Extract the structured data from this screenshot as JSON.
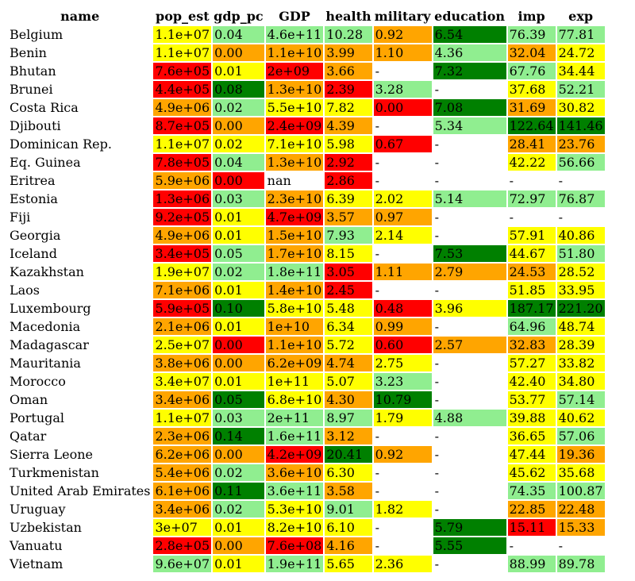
{
  "colors": {
    "r": "#ff0000",
    "o": "#ffa500",
    "y": "#ffff00",
    "lg": "#90ee90",
    "g": "#008000"
  },
  "chart_data": {
    "type": "table",
    "columns": [
      "name",
      "pop_est",
      "gdp_pc",
      "GDP",
      "health",
      "military",
      "education",
      "imp",
      "exp"
    ],
    "rows": [
      {
        "name": "Belgium",
        "cells": [
          [
            "1.1e+07",
            "y"
          ],
          [
            "0.04",
            "lg"
          ],
          [
            "4.6e+11",
            "lg"
          ],
          [
            "10.28",
            "lg"
          ],
          [
            "0.92",
            "o"
          ],
          [
            "6.54",
            "g"
          ],
          [
            "76.39",
            "lg"
          ],
          [
            "77.81",
            "lg"
          ]
        ]
      },
      {
        "name": "Benin",
        "cells": [
          [
            "1.1e+07",
            "y"
          ],
          [
            "0.00",
            "o"
          ],
          [
            "1.1e+10",
            "o"
          ],
          [
            "3.99",
            "o"
          ],
          [
            "1.10",
            "o"
          ],
          [
            "4.36",
            "lg"
          ],
          [
            "32.04",
            "o"
          ],
          [
            "24.72",
            "y"
          ]
        ]
      },
      {
        "name": "Bhutan",
        "cells": [
          [
            "7.6e+05",
            "r"
          ],
          [
            "0.01",
            "y"
          ],
          [
            "2e+09",
            "r"
          ],
          [
            "3.66",
            "o"
          ],
          [
            "-",
            ""
          ],
          [
            "7.32",
            "g"
          ],
          [
            "67.76",
            "lg"
          ],
          [
            "34.44",
            "y"
          ]
        ]
      },
      {
        "name": "Brunei",
        "cells": [
          [
            "4.4e+05",
            "r"
          ],
          [
            "0.08",
            "g"
          ],
          [
            "1.3e+10",
            "o"
          ],
          [
            "2.39",
            "r"
          ],
          [
            "3.28",
            "lg"
          ],
          [
            "-",
            ""
          ],
          [
            "37.68",
            "y"
          ],
          [
            "52.21",
            "lg"
          ]
        ]
      },
      {
        "name": "Costa Rica",
        "cells": [
          [
            "4.9e+06",
            "o"
          ],
          [
            "0.02",
            "lg"
          ],
          [
            "5.5e+10",
            "y"
          ],
          [
            "7.82",
            "y"
          ],
          [
            "0.00",
            "r"
          ],
          [
            "7.08",
            "g"
          ],
          [
            "31.69",
            "o"
          ],
          [
            "30.82",
            "y"
          ]
        ]
      },
      {
        "name": "Djibouti",
        "cells": [
          [
            "8.7e+05",
            "r"
          ],
          [
            "0.00",
            "o"
          ],
          [
            "2.4e+09",
            "r"
          ],
          [
            "4.39",
            "o"
          ],
          [
            "-",
            ""
          ],
          [
            "5.34",
            "lg"
          ],
          [
            "122.64",
            "g"
          ],
          [
            "141.46",
            "g"
          ]
        ]
      },
      {
        "name": "Dominican Rep.",
        "cells": [
          [
            "1.1e+07",
            "y"
          ],
          [
            "0.02",
            "y"
          ],
          [
            "7.1e+10",
            "y"
          ],
          [
            "5.98",
            "y"
          ],
          [
            "0.67",
            "r"
          ],
          [
            "-",
            ""
          ],
          [
            "28.41",
            "o"
          ],
          [
            "23.76",
            "o"
          ]
        ]
      },
      {
        "name": "Eq. Guinea",
        "cells": [
          [
            "7.8e+05",
            "r"
          ],
          [
            "0.04",
            "lg"
          ],
          [
            "1.3e+10",
            "o"
          ],
          [
            "2.92",
            "r"
          ],
          [
            "-",
            ""
          ],
          [
            "-",
            ""
          ],
          [
            "42.22",
            "y"
          ],
          [
            "56.66",
            "lg"
          ]
        ]
      },
      {
        "name": "Eritrea",
        "cells": [
          [
            "5.9e+06",
            "o"
          ],
          [
            "0.00",
            "r"
          ],
          [
            "nan",
            ""
          ],
          [
            "2.86",
            "r"
          ],
          [
            "-",
            ""
          ],
          [
            "-",
            ""
          ],
          [
            "-",
            ""
          ],
          [
            "-",
            ""
          ]
        ]
      },
      {
        "name": "Estonia",
        "cells": [
          [
            "1.3e+06",
            "r"
          ],
          [
            "0.03",
            "lg"
          ],
          [
            "2.3e+10",
            "o"
          ],
          [
            "6.39",
            "y"
          ],
          [
            "2.02",
            "y"
          ],
          [
            "5.14",
            "lg"
          ],
          [
            "72.97",
            "lg"
          ],
          [
            "76.87",
            "lg"
          ]
        ]
      },
      {
        "name": "Fiji",
        "cells": [
          [
            "9.2e+05",
            "r"
          ],
          [
            "0.01",
            "y"
          ],
          [
            "4.7e+09",
            "r"
          ],
          [
            "3.57",
            "o"
          ],
          [
            "0.97",
            "o"
          ],
          [
            "-",
            ""
          ],
          [
            "-",
            ""
          ],
          [
            "-",
            ""
          ]
        ]
      },
      {
        "name": "Georgia",
        "cells": [
          [
            "4.9e+06",
            "o"
          ],
          [
            "0.01",
            "y"
          ],
          [
            "1.5e+10",
            "o"
          ],
          [
            "7.93",
            "lg"
          ],
          [
            "2.14",
            "y"
          ],
          [
            "-",
            ""
          ],
          [
            "57.91",
            "y"
          ],
          [
            "40.86",
            "y"
          ]
        ]
      },
      {
        "name": "Iceland",
        "cells": [
          [
            "3.4e+05",
            "r"
          ],
          [
            "0.05",
            "lg"
          ],
          [
            "1.7e+10",
            "o"
          ],
          [
            "8.15",
            "y"
          ],
          [
            "-",
            ""
          ],
          [
            "7.53",
            "g"
          ],
          [
            "44.67",
            "y"
          ],
          [
            "51.80",
            "lg"
          ]
        ]
      },
      {
        "name": "Kazakhstan",
        "cells": [
          [
            "1.9e+07",
            "y"
          ],
          [
            "0.02",
            "lg"
          ],
          [
            "1.8e+11",
            "lg"
          ],
          [
            "3.05",
            "r"
          ],
          [
            "1.11",
            "o"
          ],
          [
            "2.79",
            "o"
          ],
          [
            "24.53",
            "o"
          ],
          [
            "28.52",
            "y"
          ]
        ]
      },
      {
        "name": "Laos",
        "cells": [
          [
            "7.1e+06",
            "o"
          ],
          [
            "0.01",
            "y"
          ],
          [
            "1.4e+10",
            "o"
          ],
          [
            "2.45",
            "r"
          ],
          [
            "-",
            ""
          ],
          [
            "-",
            ""
          ],
          [
            "51.85",
            "y"
          ],
          [
            "33.95",
            "y"
          ]
        ]
      },
      {
        "name": "Luxembourg",
        "cells": [
          [
            "5.9e+05",
            "r"
          ],
          [
            "0.10",
            "g"
          ],
          [
            "5.8e+10",
            "y"
          ],
          [
            "5.48",
            "y"
          ],
          [
            "0.48",
            "r"
          ],
          [
            "3.96",
            "y"
          ],
          [
            "187.17",
            "g"
          ],
          [
            "221.20",
            "g"
          ]
        ]
      },
      {
        "name": "Macedonia",
        "cells": [
          [
            "2.1e+06",
            "o"
          ],
          [
            "0.01",
            "y"
          ],
          [
            "1e+10",
            "o"
          ],
          [
            "6.34",
            "y"
          ],
          [
            "0.99",
            "o"
          ],
          [
            "-",
            ""
          ],
          [
            "64.96",
            "lg"
          ],
          [
            "48.74",
            "y"
          ]
        ]
      },
      {
        "name": "Madagascar",
        "cells": [
          [
            "2.5e+07",
            "y"
          ],
          [
            "0.00",
            "r"
          ],
          [
            "1.1e+10",
            "o"
          ],
          [
            "5.72",
            "y"
          ],
          [
            "0.60",
            "r"
          ],
          [
            "2.57",
            "o"
          ],
          [
            "32.83",
            "o"
          ],
          [
            "28.39",
            "y"
          ]
        ]
      },
      {
        "name": "Mauritania",
        "cells": [
          [
            "3.8e+06",
            "o"
          ],
          [
            "0.00",
            "o"
          ],
          [
            "6.2e+09",
            "o"
          ],
          [
            "4.74",
            "o"
          ],
          [
            "2.75",
            "y"
          ],
          [
            "-",
            ""
          ],
          [
            "57.27",
            "y"
          ],
          [
            "33.82",
            "y"
          ]
        ]
      },
      {
        "name": "Morocco",
        "cells": [
          [
            "3.4e+07",
            "y"
          ],
          [
            "0.01",
            "y"
          ],
          [
            "1e+11",
            "y"
          ],
          [
            "5.07",
            "y"
          ],
          [
            "3.23",
            "lg"
          ],
          [
            "-",
            ""
          ],
          [
            "42.40",
            "y"
          ],
          [
            "34.80",
            "y"
          ]
        ]
      },
      {
        "name": "Oman",
        "cells": [
          [
            "3.4e+06",
            "o"
          ],
          [
            "0.05",
            "g"
          ],
          [
            "6.8e+10",
            "y"
          ],
          [
            "4.30",
            "o"
          ],
          [
            "10.79",
            "g"
          ],
          [
            "-",
            ""
          ],
          [
            "53.77",
            "y"
          ],
          [
            "57.14",
            "lg"
          ]
        ]
      },
      {
        "name": "Portugal",
        "cells": [
          [
            "1.1e+07",
            "y"
          ],
          [
            "0.03",
            "lg"
          ],
          [
            "2e+11",
            "lg"
          ],
          [
            "8.97",
            "lg"
          ],
          [
            "1.79",
            "y"
          ],
          [
            "4.88",
            "lg"
          ],
          [
            "39.88",
            "y"
          ],
          [
            "40.62",
            "y"
          ]
        ]
      },
      {
        "name": "Qatar",
        "cells": [
          [
            "2.3e+06",
            "o"
          ],
          [
            "0.14",
            "g"
          ],
          [
            "1.6e+11",
            "lg"
          ],
          [
            "3.12",
            "o"
          ],
          [
            "-",
            ""
          ],
          [
            "-",
            ""
          ],
          [
            "36.65",
            "y"
          ],
          [
            "57.06",
            "lg"
          ]
        ]
      },
      {
        "name": "Sierra Leone",
        "cells": [
          [
            "6.2e+06",
            "o"
          ],
          [
            "0.00",
            "o"
          ],
          [
            "4.2e+09",
            "r"
          ],
          [
            "20.41",
            "g"
          ],
          [
            "0.92",
            "o"
          ],
          [
            "-",
            ""
          ],
          [
            "47.44",
            "y"
          ],
          [
            "19.36",
            "o"
          ]
        ]
      },
      {
        "name": "Turkmenistan",
        "cells": [
          [
            "5.4e+06",
            "o"
          ],
          [
            "0.02",
            "lg"
          ],
          [
            "3.6e+10",
            "o"
          ],
          [
            "6.30",
            "y"
          ],
          [
            "-",
            ""
          ],
          [
            "-",
            ""
          ],
          [
            "45.62",
            "y"
          ],
          [
            "35.68",
            "y"
          ]
        ]
      },
      {
        "name": "United Arab Emirates",
        "cells": [
          [
            "6.1e+06",
            "o"
          ],
          [
            "0.11",
            "g"
          ],
          [
            "3.6e+11",
            "lg"
          ],
          [
            "3.58",
            "o"
          ],
          [
            "-",
            ""
          ],
          [
            "-",
            ""
          ],
          [
            "74.35",
            "lg"
          ],
          [
            "100.87",
            "lg"
          ]
        ]
      },
      {
        "name": "Uruguay",
        "cells": [
          [
            "3.4e+06",
            "o"
          ],
          [
            "0.02",
            "lg"
          ],
          [
            "5.3e+10",
            "y"
          ],
          [
            "9.01",
            "lg"
          ],
          [
            "1.82",
            "y"
          ],
          [
            "-",
            ""
          ],
          [
            "22.85",
            "o"
          ],
          [
            "22.48",
            "o"
          ]
        ]
      },
      {
        "name": "Uzbekistan",
        "cells": [
          [
            "3e+07",
            "y"
          ],
          [
            "0.01",
            "y"
          ],
          [
            "8.2e+10",
            "y"
          ],
          [
            "6.10",
            "y"
          ],
          [
            "-",
            ""
          ],
          [
            "5.79",
            "g"
          ],
          [
            "15.11",
            "r"
          ],
          [
            "15.33",
            "o"
          ]
        ]
      },
      {
        "name": "Vanuatu",
        "cells": [
          [
            "2.8e+05",
            "r"
          ],
          [
            "0.00",
            "o"
          ],
          [
            "7.6e+08",
            "r"
          ],
          [
            "4.16",
            "o"
          ],
          [
            "-",
            ""
          ],
          [
            "5.55",
            "g"
          ],
          [
            "-",
            ""
          ],
          [
            "-",
            ""
          ]
        ]
      },
      {
        "name": "Vietnam",
        "cells": [
          [
            "9.6e+07",
            "lg"
          ],
          [
            "0.01",
            "y"
          ],
          [
            "1.9e+11",
            "lg"
          ],
          [
            "5.65",
            "y"
          ],
          [
            "2.36",
            "y"
          ],
          [
            "-",
            ""
          ],
          [
            "88.99",
            "lg"
          ],
          [
            "89.78",
            "lg"
          ]
        ]
      }
    ]
  }
}
